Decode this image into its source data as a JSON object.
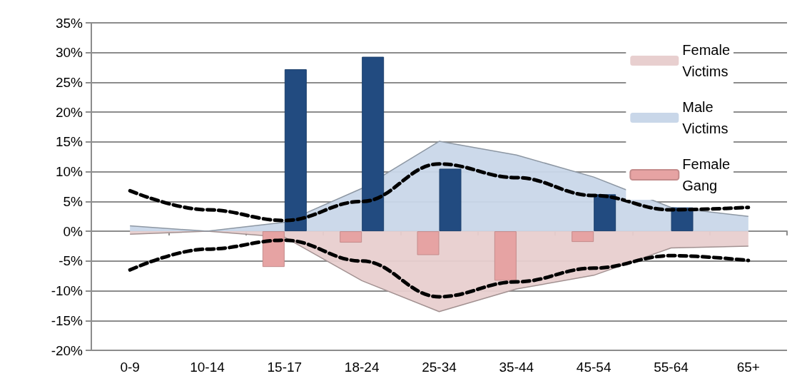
{
  "chart_data": {
    "type": "bar",
    "categories": [
      "0-9",
      "10-14",
      "15-17",
      "18-24",
      "25-34",
      "35-44",
      "45-54",
      "55-64",
      "65+"
    ],
    "series": [
      {
        "name": "Female Victims",
        "type": "area",
        "color": "#e8cfcf",
        "values": [
          -0.5,
          0,
          -1,
          -8.3,
          -13.5,
          -9.7,
          -7.4,
          -2.8,
          -2.5
        ]
      },
      {
        "name": "Male Victims",
        "type": "area",
        "color": "#c9d7e9",
        "values": [
          0.9,
          0,
          1.5,
          7.2,
          15.1,
          12.8,
          9.1,
          4,
          2.5
        ]
      },
      {
        "name": "Female Gang",
        "color": "#e6a3a3",
        "values": [
          null,
          null,
          -6,
          -1.9,
          -4,
          -8.3,
          -1.8,
          null,
          null
        ]
      },
      {
        "color": "#224b80",
        "values": [
          null,
          null,
          27.2,
          29.3,
          10.5,
          null,
          6.2,
          4,
          null
        ]
      },
      {
        "type": "line",
        "color": "#000000",
        "line_style": "dashed",
        "values": [
          6.8,
          3.6,
          1.8,
          5,
          11.3,
          9,
          6,
          3.6,
          4
        ]
      },
      {
        "type": "line",
        "color": "#000000",
        "line_style": "dashed",
        "values": [
          -6.5,
          -3,
          -1.5,
          -5,
          -11,
          -8.5,
          -6.2,
          -4.1,
          -4.9
        ]
      }
    ],
    "ylim": [
      -20,
      35
    ],
    "yticks": [
      {
        "value": -20,
        "label": "-20%"
      },
      {
        "value": -15,
        "label": "-15%"
      },
      {
        "value": -10,
        "label": "-10%"
      },
      {
        "value": -5,
        "label": "-5%"
      },
      {
        "value": 0,
        "label": "0%"
      },
      {
        "value": 5,
        "label": "5%"
      },
      {
        "value": 10,
        "label": "10%"
      },
      {
        "value": 15,
        "label": "15%"
      },
      {
        "value": 20,
        "label": "20%"
      },
      {
        "value": 25,
        "label": "25%"
      },
      {
        "value": 30,
        "label": "30%"
      },
      {
        "value": 35,
        "label": "35%"
      }
    ],
    "grid": "y",
    "legend": "top right",
    "marker": "none"
  }
}
